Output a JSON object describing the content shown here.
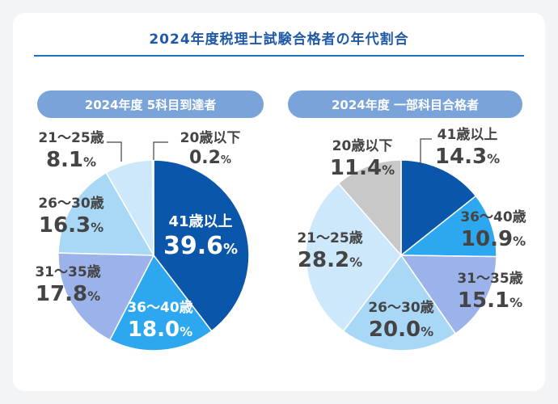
{
  "title": "2024年度税理士試験合格者の年代割合",
  "chart_data": [
    {
      "type": "pie",
      "title": "2024年度 5科目到達者",
      "categories": [
        "41歳以上",
        "36～40歳",
        "31～35歳",
        "26～30歳",
        "21～25歳",
        "20歳以下"
      ],
      "values": [
        39.6,
        18.0,
        17.8,
        16.3,
        8.1,
        0.2
      ],
      "value_labels": [
        "39.6",
        "18.0",
        "17.8",
        "16.3",
        "8.1",
        "0.2"
      ],
      "colors": [
        "#0a56ab",
        "#2da8f0",
        "#9bb3ea",
        "#a9d8f7",
        "#cde8fb",
        "#c8c8c8"
      ],
      "unit": "%"
    },
    {
      "type": "pie",
      "title": "2024年度 一部科目合格者",
      "categories": [
        "41歳以上",
        "36～40歳",
        "31～35歳",
        "26～30歳",
        "21～25歳",
        "20歳以下"
      ],
      "values": [
        14.3,
        10.9,
        15.1,
        20.0,
        28.2,
        11.4
      ],
      "value_labels": [
        "14.3",
        "10.9",
        "15.1",
        "20.0",
        "28.2",
        "11.4"
      ],
      "colors": [
        "#0a56ab",
        "#2da8f0",
        "#9bb3ea",
        "#a9d8f7",
        "#cde8fb",
        "#c8c8c8"
      ],
      "unit": "%"
    }
  ]
}
